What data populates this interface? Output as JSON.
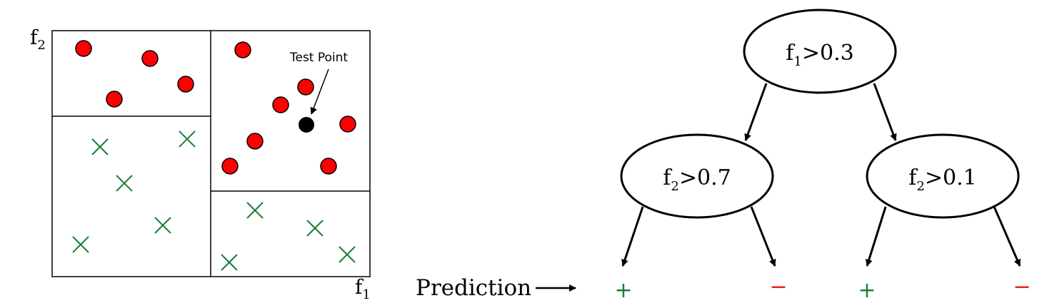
{
  "colors": {
    "positive": "#1a7f3a",
    "negative": "#e8221c",
    "point_fill": "#ff0000",
    "test_point": "#000000",
    "ink": "#000000"
  },
  "scatter": {
    "axis_x_label": "f",
    "axis_x_sub": "1",
    "axis_y_label": "f",
    "axis_y_sub": "2",
    "test_point_label": "Test Point"
  },
  "tree": {
    "root": {
      "feature": "f",
      "sub": "1",
      "rest": ">0.3"
    },
    "left": {
      "feature": "f",
      "sub": "2",
      "rest": ">0.7"
    },
    "right": {
      "feature": "f",
      "sub": "2",
      "rest": ">0.1"
    }
  },
  "prediction": {
    "label": "Prediction",
    "leaves": [
      "+",
      "−",
      "+",
      "−"
    ]
  }
}
